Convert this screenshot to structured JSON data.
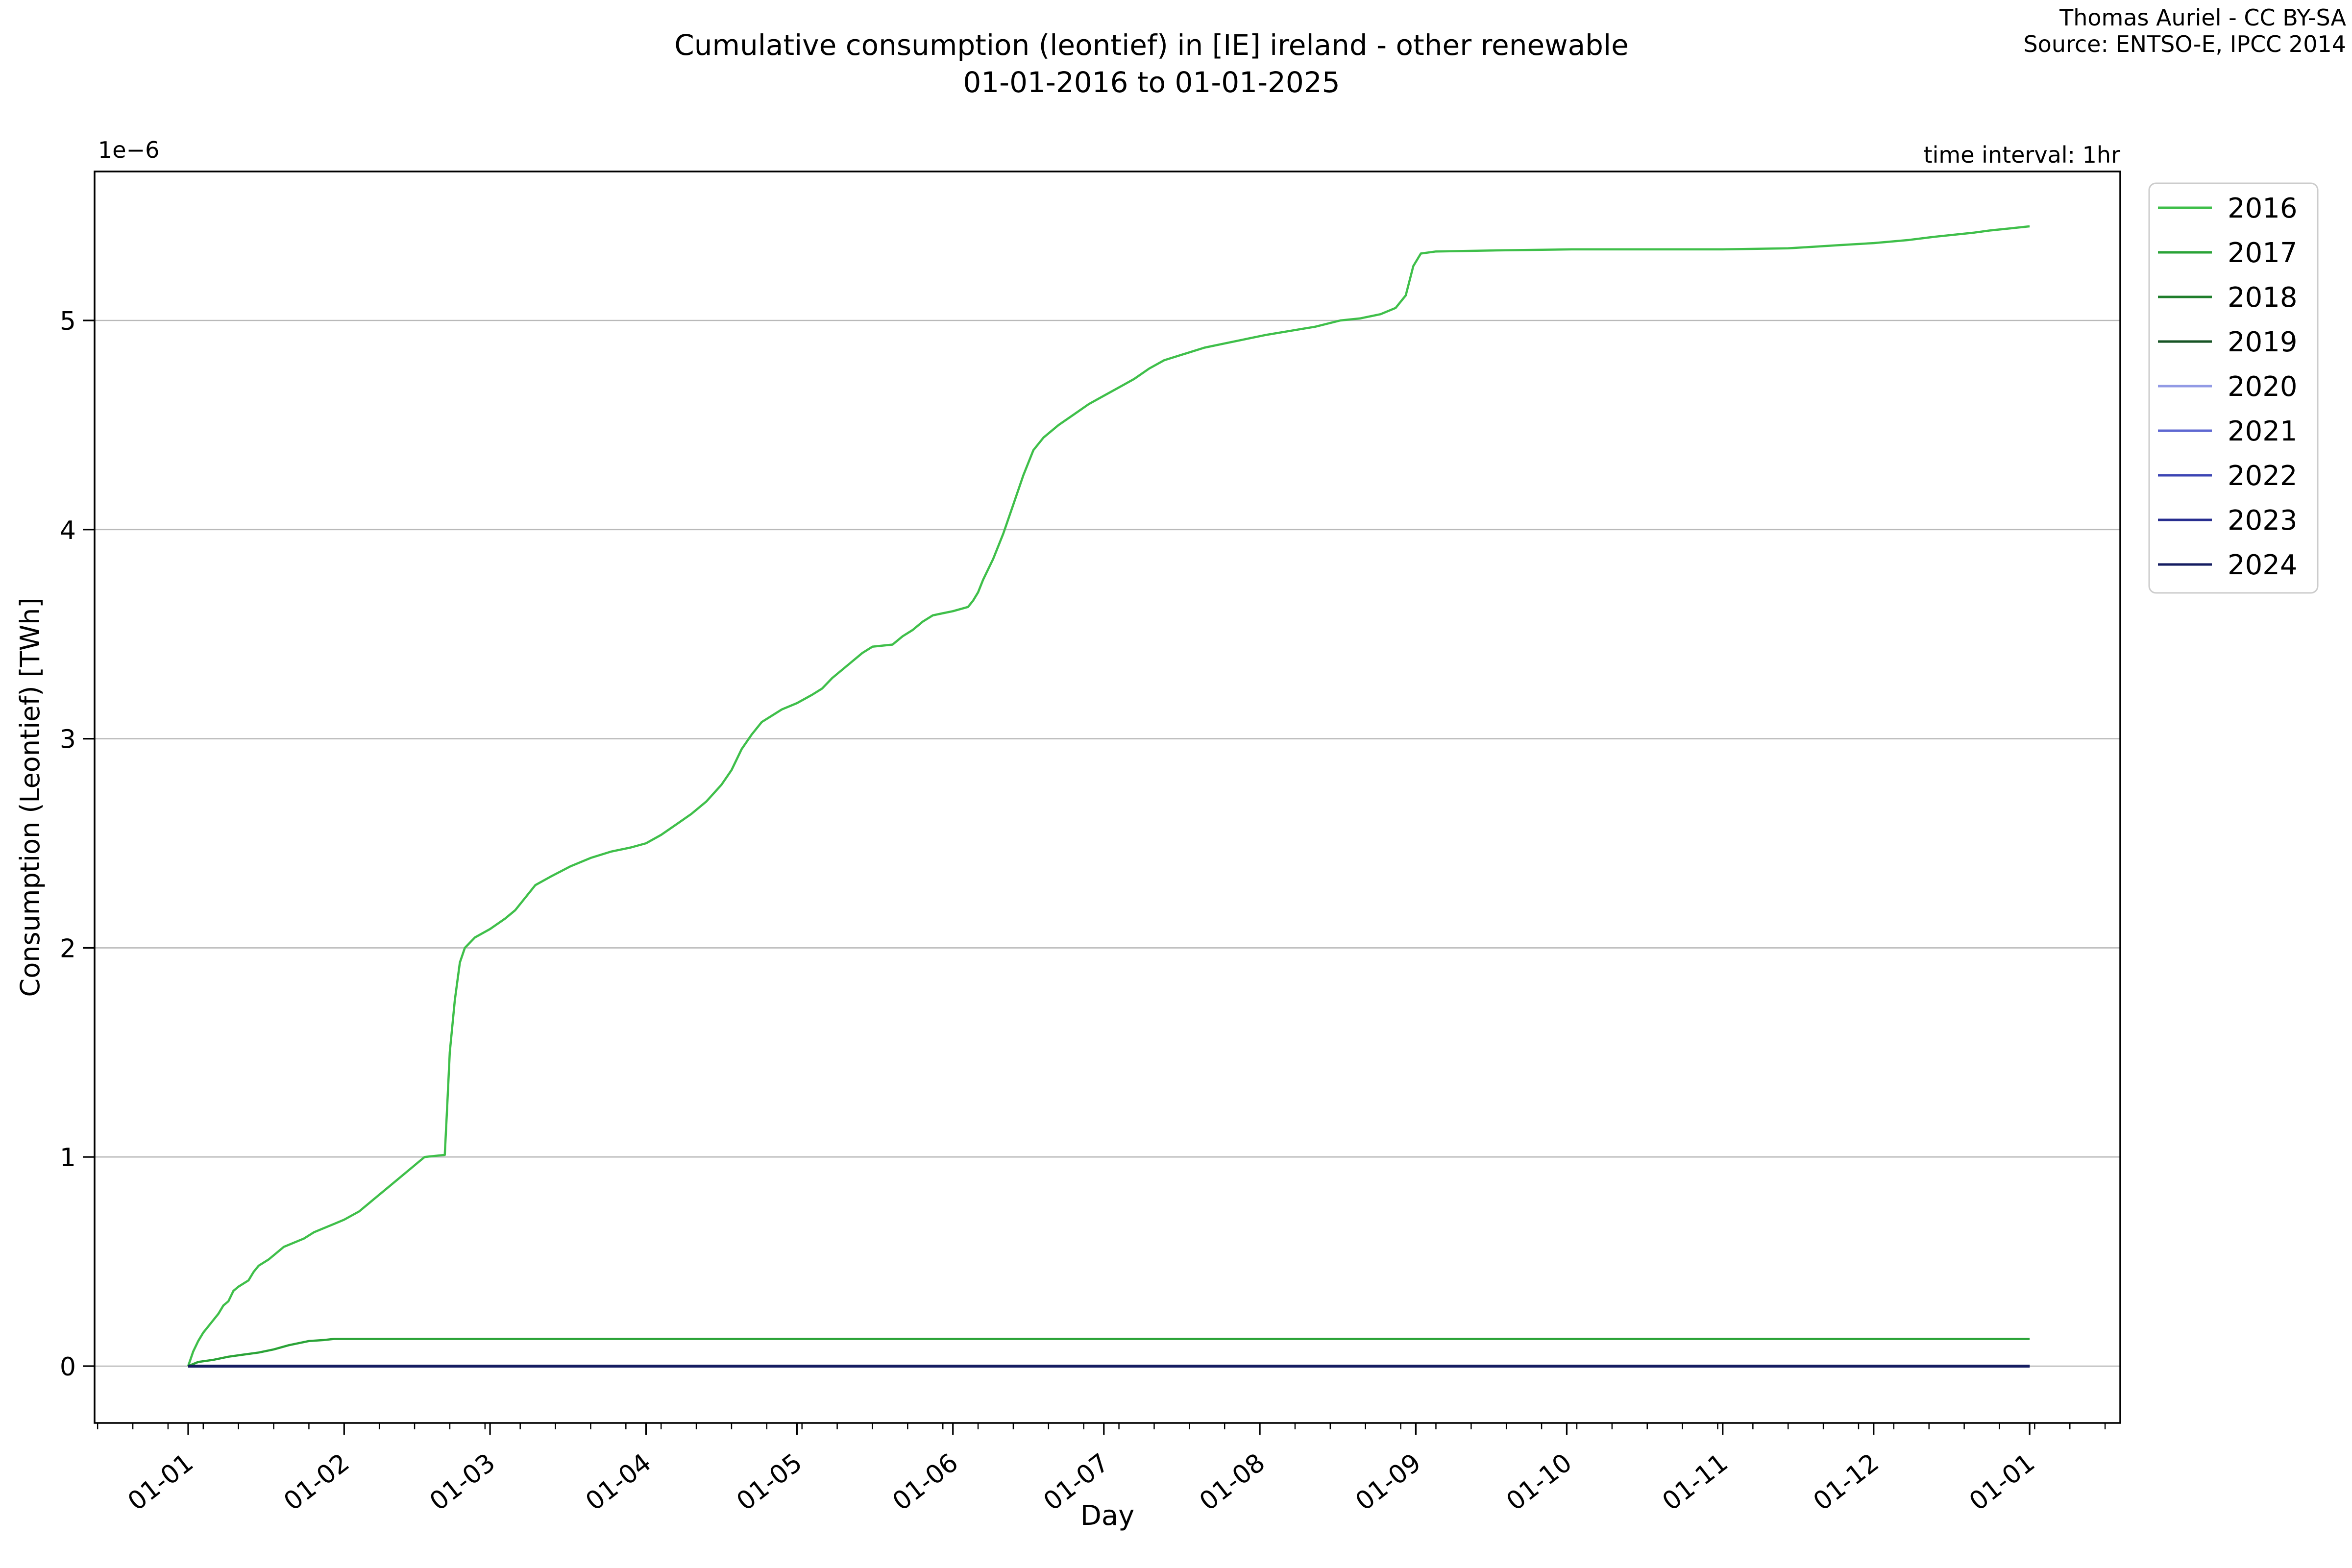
{
  "figure": {
    "title_line1": "Cumulative consumption (leontief) in [IE] ireland - other renewable",
    "title_line2": "01-01-2016 to 01-01-2025",
    "attribution_line1": "Thomas Auriel - CC BY-SA",
    "attribution_line2": "Source: ENTSO-E, IPCC 2014",
    "note_top_right": "time interval: 1hr"
  },
  "chart_data": {
    "type": "line",
    "title": "Cumulative consumption (leontief) in [IE] ireland - other renewable 01-01-2016 to 01-01-2025",
    "xlabel": "Day",
    "ylabel": "Consumption (Leontief) [TWh]",
    "y_offset_label": "1e−6",
    "y_unit_scale": "1e-6 TWh",
    "ylim": [
      -0.27,
      5.62
    ],
    "grid": "horizontal-only",
    "legend_position": "outside-right-top",
    "y_ticks": [
      0,
      1,
      2,
      3,
      4,
      5
    ],
    "x_axis": {
      "tick_labels": [
        "01-01",
        "01-02",
        "01-03",
        "01-04",
        "01-05",
        "01-06",
        "01-07",
        "01-08",
        "01-09",
        "01-10",
        "01-11",
        "01-12",
        "01-01"
      ],
      "tick_days": [
        0,
        31,
        60,
        91,
        121,
        152,
        182,
        213,
        244,
        274,
        305,
        335,
        366
      ],
      "minor_tick_interval_days": 7,
      "minor_tick_phase_day": 3,
      "span_days": 366
    },
    "series": [
      {
        "name": "2016",
        "color": "#3fbf4a",
        "points": [
          [
            0,
            0
          ],
          [
            1,
            0.07
          ],
          [
            2,
            0.12
          ],
          [
            3,
            0.16
          ],
          [
            4,
            0.19
          ],
          [
            5,
            0.22
          ],
          [
            6,
            0.25
          ],
          [
            7,
            0.29
          ],
          [
            8,
            0.31
          ],
          [
            9,
            0.36
          ],
          [
            10,
            0.38
          ],
          [
            12,
            0.41
          ],
          [
            13,
            0.45
          ],
          [
            14,
            0.48
          ],
          [
            16,
            0.51
          ],
          [
            18,
            0.55
          ],
          [
            19,
            0.57
          ],
          [
            21,
            0.59
          ],
          [
            23,
            0.61
          ],
          [
            25,
            0.64
          ],
          [
            27,
            0.66
          ],
          [
            29,
            0.68
          ],
          [
            31,
            0.7
          ],
          [
            34,
            0.74
          ],
          [
            36,
            0.78
          ],
          [
            38,
            0.82
          ],
          [
            40,
            0.86
          ],
          [
            42,
            0.9
          ],
          [
            44,
            0.94
          ],
          [
            46,
            0.98
          ],
          [
            47,
            1.0
          ],
          [
            51,
            1.01
          ],
          [
            51.5,
            1.25
          ],
          [
            52,
            1.5
          ],
          [
            53,
            1.75
          ],
          [
            54,
            1.93
          ],
          [
            55,
            2.0
          ],
          [
            57,
            2.05
          ],
          [
            60,
            2.09
          ],
          [
            63,
            2.14
          ],
          [
            65,
            2.18
          ],
          [
            67,
            2.24
          ],
          [
            69,
            2.3
          ],
          [
            72,
            2.34
          ],
          [
            76,
            2.39
          ],
          [
            80,
            2.43
          ],
          [
            84,
            2.46
          ],
          [
            88,
            2.48
          ],
          [
            91,
            2.5
          ],
          [
            94,
            2.54
          ],
          [
            97,
            2.59
          ],
          [
            100,
            2.64
          ],
          [
            103,
            2.7
          ],
          [
            106,
            2.78
          ],
          [
            108,
            2.85
          ],
          [
            110,
            2.95
          ],
          [
            112,
            3.02
          ],
          [
            114,
            3.08
          ],
          [
            116,
            3.11
          ],
          [
            118,
            3.14
          ],
          [
            121,
            3.17
          ],
          [
            124,
            3.21
          ],
          [
            126,
            3.24
          ],
          [
            128,
            3.29
          ],
          [
            130,
            3.33
          ],
          [
            132,
            3.37
          ],
          [
            134,
            3.41
          ],
          [
            136,
            3.44
          ],
          [
            140,
            3.45
          ],
          [
            142,
            3.49
          ],
          [
            144,
            3.52
          ],
          [
            146,
            3.56
          ],
          [
            148,
            3.59
          ],
          [
            150,
            3.6
          ],
          [
            152,
            3.61
          ],
          [
            155,
            3.63
          ],
          [
            156,
            3.66
          ],
          [
            157,
            3.7
          ],
          [
            158,
            3.76
          ],
          [
            160,
            3.86
          ],
          [
            162,
            3.98
          ],
          [
            164,
            4.12
          ],
          [
            166,
            4.26
          ],
          [
            168,
            4.38
          ],
          [
            170,
            4.44
          ],
          [
            173,
            4.5
          ],
          [
            176,
            4.55
          ],
          [
            179,
            4.6
          ],
          [
            182,
            4.64
          ],
          [
            185,
            4.68
          ],
          [
            188,
            4.72
          ],
          [
            191,
            4.77
          ],
          [
            194,
            4.81
          ],
          [
            198,
            4.84
          ],
          [
            202,
            4.87
          ],
          [
            206,
            4.89
          ],
          [
            210,
            4.91
          ],
          [
            214,
            4.93
          ],
          [
            219,
            4.95
          ],
          [
            224,
            4.97
          ],
          [
            229,
            5.0
          ],
          [
            233,
            5.01
          ],
          [
            237,
            5.03
          ],
          [
            240,
            5.06
          ],
          [
            242,
            5.12
          ],
          [
            243.5,
            5.26
          ],
          [
            245,
            5.32
          ],
          [
            248,
            5.33
          ],
          [
            260,
            5.335
          ],
          [
            275,
            5.34
          ],
          [
            290,
            5.34
          ],
          [
            305,
            5.34
          ],
          [
            318,
            5.345
          ],
          [
            328,
            5.36
          ],
          [
            335,
            5.37
          ],
          [
            342,
            5.385
          ],
          [
            347,
            5.4
          ],
          [
            351,
            5.41
          ],
          [
            355,
            5.42
          ],
          [
            358,
            5.43
          ],
          [
            362,
            5.44
          ],
          [
            366,
            5.45
          ]
        ]
      },
      {
        "name": "2017",
        "color": "#2aa337",
        "points": [
          [
            0,
            0
          ],
          [
            2,
            0.02
          ],
          [
            5,
            0.03
          ],
          [
            8,
            0.045
          ],
          [
            11,
            0.055
          ],
          [
            14,
            0.065
          ],
          [
            17,
            0.08
          ],
          [
            20,
            0.1
          ],
          [
            22,
            0.11
          ],
          [
            24,
            0.12
          ],
          [
            27,
            0.125
          ],
          [
            29,
            0.13
          ],
          [
            120,
            0.13
          ],
          [
            240,
            0.13
          ],
          [
            366,
            0.13
          ]
        ]
      },
      {
        "name": "2018",
        "color": "#1f7e2b",
        "points": [
          [
            0,
            0
          ],
          [
            366,
            0
          ]
        ]
      },
      {
        "name": "2019",
        "color": "#175425",
        "points": [
          [
            0,
            0
          ],
          [
            366,
            0
          ]
        ]
      },
      {
        "name": "2020",
        "color": "#929ae5",
        "points": [
          [
            0,
            0
          ],
          [
            366,
            0
          ]
        ]
      },
      {
        "name": "2021",
        "color": "#5f68d2",
        "points": [
          [
            0,
            0
          ],
          [
            366,
            0
          ]
        ]
      },
      {
        "name": "2022",
        "color": "#3c45b4",
        "points": [
          [
            0,
            0
          ],
          [
            366,
            0
          ]
        ]
      },
      {
        "name": "2023",
        "color": "#272e8f",
        "points": [
          [
            0,
            0
          ],
          [
            366,
            0
          ]
        ]
      },
      {
        "name": "2024",
        "color": "#151d61",
        "points": [
          [
            0,
            0
          ],
          [
            366,
            0
          ]
        ]
      }
    ]
  }
}
